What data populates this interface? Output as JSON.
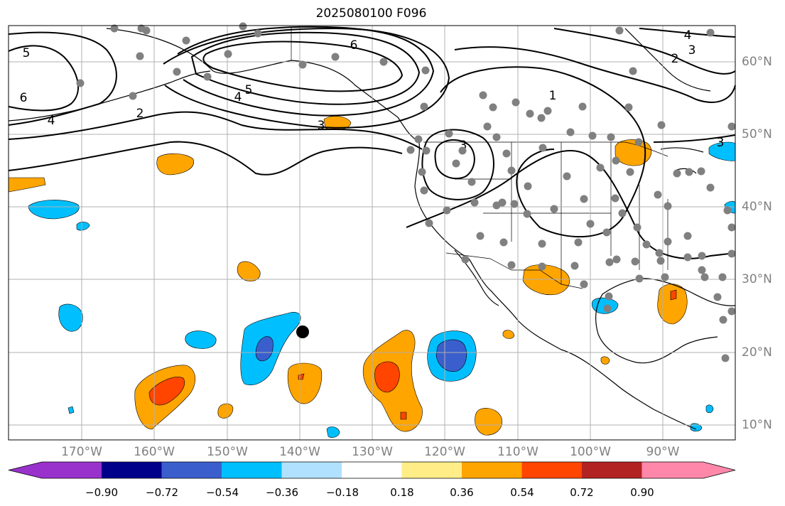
{
  "title": "2025080100 F096",
  "lon_labels": [
    "170°W",
    "160°W",
    "150°W",
    "140°W",
    "130°W",
    "120°W",
    "110°W",
    "100°W",
    "90°W"
  ],
  "lat_labels": [
    "60°N",
    "50°N",
    "40°N",
    "30°N",
    "20°N",
    "10°N"
  ],
  "colorbar": {
    "ticks": [
      "−0.90",
      "−0.72",
      "−0.54",
      "−0.36",
      "−0.18",
      "0.18",
      "0.36",
      "0.54",
      "0.72",
      "0.90"
    ],
    "colors": [
      "#9932cc",
      "#00008b",
      "#3a5fcd",
      "#00bfff",
      "#b0e2ff",
      "#ffffff",
      "#ffee88",
      "#ffa500",
      "#ff4500",
      "#b22222",
      "#ff88aa"
    ]
  },
  "contour_labels": [
    "5",
    "6",
    "4",
    "2",
    "6",
    "5",
    "4",
    "3",
    "1",
    "2",
    "3",
    "4",
    "3",
    "3"
  ],
  "colors": {
    "positive": "#ffa500",
    "strong_positive": "#ff4500",
    "negative": "#00bfff",
    "strong_negative": "#3a5fcd",
    "station": "#808080",
    "grid": "#b0b0b0"
  }
}
